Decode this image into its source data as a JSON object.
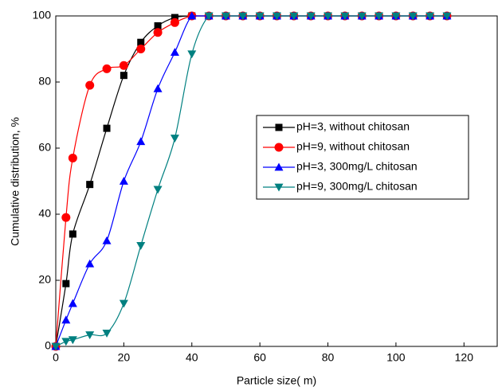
{
  "chart_data": {
    "type": "line",
    "x_label": "Particle size( m)",
    "y_label": "Cumulative distribution, %",
    "x": [
      0,
      3,
      5,
      10,
      15,
      20,
      25,
      30,
      35,
      40,
      45,
      50,
      55,
      60,
      65,
      70,
      75,
      80,
      85,
      90,
      95,
      100,
      105,
      110,
      115
    ],
    "series": [
      {
        "name": "pH=3, without chitosan",
        "color": "#000000",
        "marker": "square",
        "values": [
          0,
          19,
          34,
          49,
          66,
          82,
          92,
          97,
          99.5,
          100,
          100,
          100,
          100,
          100,
          100,
          100,
          100,
          100,
          100,
          100,
          100,
          100,
          100,
          100,
          100
        ]
      },
      {
        "name": "pH=9, without chitosan",
        "color": "#ff0000",
        "marker": "circle",
        "values": [
          0,
          39,
          57,
          79,
          84,
          85,
          90,
          95,
          98,
          100,
          100,
          100,
          100,
          100,
          100,
          100,
          100,
          100,
          100,
          100,
          100,
          100,
          100,
          100,
          100
        ]
      },
      {
        "name": "pH=3, 300mg/L chitosan",
        "color": "#0000ff",
        "marker": "triangle-up",
        "values": [
          0,
          8,
          13,
          25,
          32,
          50,
          62,
          78,
          89,
          100,
          100,
          100,
          100,
          100,
          100,
          100,
          100,
          100,
          100,
          100,
          100,
          100,
          100,
          100,
          100
        ]
      },
      {
        "name": "pH=9, 300mg/L chitosan",
        "color": "#008080",
        "marker": "triangle-down",
        "values": [
          0,
          1.5,
          2,
          3.5,
          4,
          13,
          30.5,
          47.5,
          63,
          88.5,
          100,
          100,
          100,
          100,
          100,
          100,
          100,
          100,
          100,
          100,
          100,
          100,
          100,
          100,
          100
        ]
      }
    ],
    "xlim": [
      0,
      130
    ],
    "ylim": [
      0,
      100
    ],
    "xticks": [
      0,
      20,
      40,
      60,
      80,
      100,
      120
    ],
    "yticks": [
      0,
      20,
      40,
      60,
      80,
      100
    ],
    "legend": "right"
  }
}
